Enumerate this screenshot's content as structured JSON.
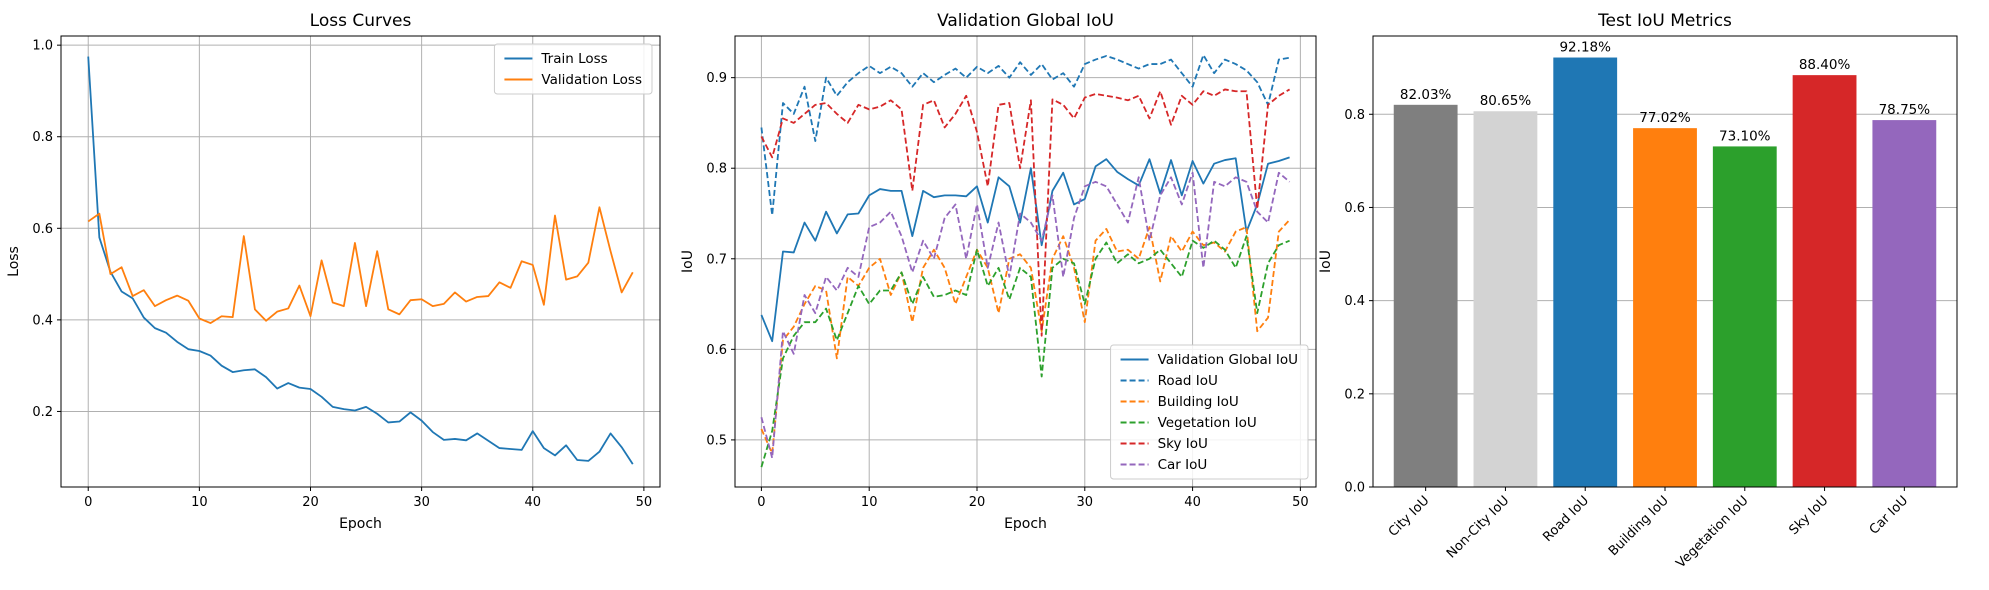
{
  "chart_data": [
    {
      "type": "line",
      "title": "Loss Curves",
      "xlabel": "Epoch",
      "ylabel": "Loss",
      "xlim": [
        -2.45,
        51.45
      ],
      "ylim": [
        0.035,
        1.02
      ],
      "xticks": [
        0,
        10,
        20,
        30,
        40,
        50
      ],
      "yticks": [
        0.2,
        0.4,
        0.6,
        0.8,
        1.0
      ],
      "grid": true,
      "legend": "top-right",
      "x": [
        0,
        1,
        2,
        3,
        4,
        5,
        6,
        7,
        8,
        9,
        10,
        11,
        12,
        13,
        14,
        15,
        16,
        17,
        18,
        19,
        20,
        21,
        22,
        23,
        24,
        25,
        26,
        27,
        28,
        29,
        30,
        31,
        32,
        33,
        34,
        35,
        36,
        37,
        38,
        39,
        40,
        41,
        42,
        43,
        44,
        45,
        46,
        47,
        48,
        49
      ],
      "series": [
        {
          "name": "Train Loss",
          "color": "#1f77b4",
          "dash": "solid",
          "values": [
            0.975,
            0.58,
            0.505,
            0.462,
            0.447,
            0.405,
            0.382,
            0.372,
            0.352,
            0.336,
            0.332,
            0.322,
            0.3,
            0.286,
            0.29,
            0.292,
            0.275,
            0.25,
            0.262,
            0.252,
            0.249,
            0.232,
            0.21,
            0.205,
            0.202,
            0.21,
            0.195,
            0.176,
            0.178,
            0.198,
            0.18,
            0.155,
            0.138,
            0.14,
            0.137,
            0.152,
            0.136,
            0.12,
            0.118,
            0.116,
            0.157,
            0.12,
            0.104,
            0.126,
            0.094,
            0.092,
            0.112,
            0.152,
            0.122,
            0.085
          ]
        },
        {
          "name": "Validation Loss",
          "color": "#ff7f0e",
          "dash": "solid",
          "values": [
            0.615,
            0.632,
            0.5,
            0.515,
            0.452,
            0.465,
            0.43,
            0.443,
            0.453,
            0.442,
            0.403,
            0.393,
            0.408,
            0.406,
            0.583,
            0.423,
            0.398,
            0.418,
            0.425,
            0.475,
            0.408,
            0.53,
            0.438,
            0.43,
            0.568,
            0.43,
            0.55,
            0.423,
            0.412,
            0.443,
            0.445,
            0.43,
            0.435,
            0.46,
            0.44,
            0.45,
            0.452,
            0.482,
            0.47,
            0.528,
            0.52,
            0.433,
            0.628,
            0.488,
            0.495,
            0.525,
            0.646,
            0.55,
            0.46,
            0.504
          ]
        }
      ]
    },
    {
      "type": "line",
      "title": "Validation Global IoU",
      "xlabel": "Epoch",
      "ylabel": "IoU",
      "xlim": [
        -2.45,
        51.45
      ],
      "ylim": [
        0.448,
        0.946
      ],
      "xticks": [
        0,
        10,
        20,
        30,
        40,
        50
      ],
      "yticks": [
        0.5,
        0.6,
        0.7,
        0.8,
        0.9
      ],
      "grid": true,
      "legend": "bottom-right",
      "x": [
        0,
        1,
        2,
        3,
        4,
        5,
        6,
        7,
        8,
        9,
        10,
        11,
        12,
        13,
        14,
        15,
        16,
        17,
        18,
        19,
        20,
        21,
        22,
        23,
        24,
        25,
        26,
        27,
        28,
        29,
        30,
        31,
        32,
        33,
        34,
        35,
        36,
        37,
        38,
        39,
        40,
        41,
        42,
        43,
        44,
        45,
        46,
        47,
        48,
        49
      ],
      "series": [
        {
          "name": "Validation Global IoU",
          "color": "#1f77b4",
          "dash": "solid",
          "values": [
            0.638,
            0.609,
            0.708,
            0.707,
            0.74,
            0.72,
            0.752,
            0.728,
            0.749,
            0.75,
            0.77,
            0.777,
            0.775,
            0.775,
            0.725,
            0.775,
            0.768,
            0.77,
            0.77,
            0.769,
            0.78,
            0.74,
            0.79,
            0.78,
            0.74,
            0.8,
            0.715,
            0.775,
            0.795,
            0.76,
            0.766,
            0.802,
            0.81,
            0.796,
            0.788,
            0.781,
            0.81,
            0.772,
            0.809,
            0.77,
            0.808,
            0.783,
            0.805,
            0.809,
            0.811,
            0.73,
            0.76,
            0.805,
            0.808,
            0.812
          ]
        },
        {
          "name": "Road IoU",
          "color": "#1f77b4",
          "dash": "dashed",
          "values": [
            0.845,
            0.748,
            0.872,
            0.86,
            0.89,
            0.83,
            0.9,
            0.88,
            0.895,
            0.905,
            0.913,
            0.905,
            0.912,
            0.905,
            0.89,
            0.905,
            0.895,
            0.903,
            0.91,
            0.9,
            0.912,
            0.905,
            0.913,
            0.9,
            0.917,
            0.903,
            0.915,
            0.898,
            0.905,
            0.89,
            0.915,
            0.92,
            0.924,
            0.92,
            0.915,
            0.91,
            0.915,
            0.915,
            0.92,
            0.905,
            0.89,
            0.925,
            0.905,
            0.92,
            0.915,
            0.908,
            0.895,
            0.87,
            0.92,
            0.922
          ]
        },
        {
          "name": "Building IoU",
          "color": "#ff7f0e",
          "dash": "dashed",
          "values": [
            0.512,
            0.485,
            0.61,
            0.625,
            0.65,
            0.67,
            0.665,
            0.59,
            0.68,
            0.67,
            0.69,
            0.7,
            0.66,
            0.685,
            0.63,
            0.69,
            0.71,
            0.69,
            0.65,
            0.68,
            0.71,
            0.69,
            0.64,
            0.7,
            0.705,
            0.69,
            0.62,
            0.7,
            0.725,
            0.69,
            0.63,
            0.72,
            0.733,
            0.708,
            0.71,
            0.7,
            0.735,
            0.675,
            0.725,
            0.708,
            0.73,
            0.715,
            0.718,
            0.708,
            0.73,
            0.735,
            0.62,
            0.635,
            0.73,
            0.743
          ]
        },
        {
          "name": "Vegetation IoU",
          "color": "#2ca02c",
          "dash": "dashed",
          "values": [
            0.47,
            0.51,
            0.59,
            0.615,
            0.63,
            0.63,
            0.645,
            0.61,
            0.64,
            0.67,
            0.65,
            0.665,
            0.665,
            0.685,
            0.65,
            0.68,
            0.658,
            0.66,
            0.665,
            0.66,
            0.71,
            0.67,
            0.69,
            0.655,
            0.69,
            0.68,
            0.57,
            0.69,
            0.7,
            0.695,
            0.65,
            0.7,
            0.718,
            0.695,
            0.705,
            0.695,
            0.7,
            0.71,
            0.695,
            0.68,
            0.72,
            0.712,
            0.72,
            0.71,
            0.69,
            0.725,
            0.64,
            0.695,
            0.715,
            0.72
          ]
        },
        {
          "name": "Sky IoU",
          "color": "#d62728",
          "dash": "dashed",
          "values": [
            0.835,
            0.812,
            0.855,
            0.85,
            0.86,
            0.87,
            0.872,
            0.86,
            0.85,
            0.87,
            0.865,
            0.868,
            0.875,
            0.865,
            0.775,
            0.87,
            0.875,
            0.845,
            0.86,
            0.88,
            0.84,
            0.78,
            0.87,
            0.872,
            0.8,
            0.875,
            0.615,
            0.876,
            0.87,
            0.855,
            0.878,
            0.882,
            0.88,
            0.878,
            0.875,
            0.88,
            0.855,
            0.885,
            0.848,
            0.88,
            0.87,
            0.885,
            0.88,
            0.887,
            0.885,
            0.885,
            0.755,
            0.87,
            0.88,
            0.887
          ]
        },
        {
          "name": "Car IoU",
          "color": "#9467bd",
          "dash": "dashed",
          "values": [
            0.525,
            0.48,
            0.62,
            0.595,
            0.66,
            0.64,
            0.68,
            0.665,
            0.69,
            0.68,
            0.735,
            0.74,
            0.752,
            0.725,
            0.685,
            0.72,
            0.7,
            0.745,
            0.76,
            0.7,
            0.76,
            0.69,
            0.74,
            0.68,
            0.75,
            0.74,
            0.72,
            0.77,
            0.68,
            0.745,
            0.78,
            0.785,
            0.78,
            0.76,
            0.74,
            0.79,
            0.72,
            0.77,
            0.79,
            0.76,
            0.795,
            0.69,
            0.785,
            0.78,
            0.79,
            0.785,
            0.752,
            0.74,
            0.795,
            0.785
          ]
        }
      ]
    },
    {
      "type": "bar",
      "title": "Test IoU Metrics",
      "xlabel": "",
      "ylabel": "IoU",
      "ylim": [
        0,
        0.968
      ],
      "yticks": [
        0.0,
        0.2,
        0.4,
        0.6,
        0.8
      ],
      "grid": true,
      "categories": [
        "City IoU",
        "Non-City IoU",
        "Road IoU",
        "Building IoU",
        "Vegetation IoU",
        "Sky IoU",
        "Car IoU"
      ],
      "values": [
        0.8203,
        0.8065,
        0.9218,
        0.7702,
        0.731,
        0.884,
        0.7875
      ],
      "data_labels": [
        "82.03%",
        "80.65%",
        "92.18%",
        "77.02%",
        "73.10%",
        "88.40%",
        "78.75%"
      ],
      "colors": [
        "#7f7f7f",
        "#d3d3d3",
        "#1f77b4",
        "#ff7f0e",
        "#2ca02c",
        "#d62728",
        "#9467bd"
      ]
    }
  ]
}
